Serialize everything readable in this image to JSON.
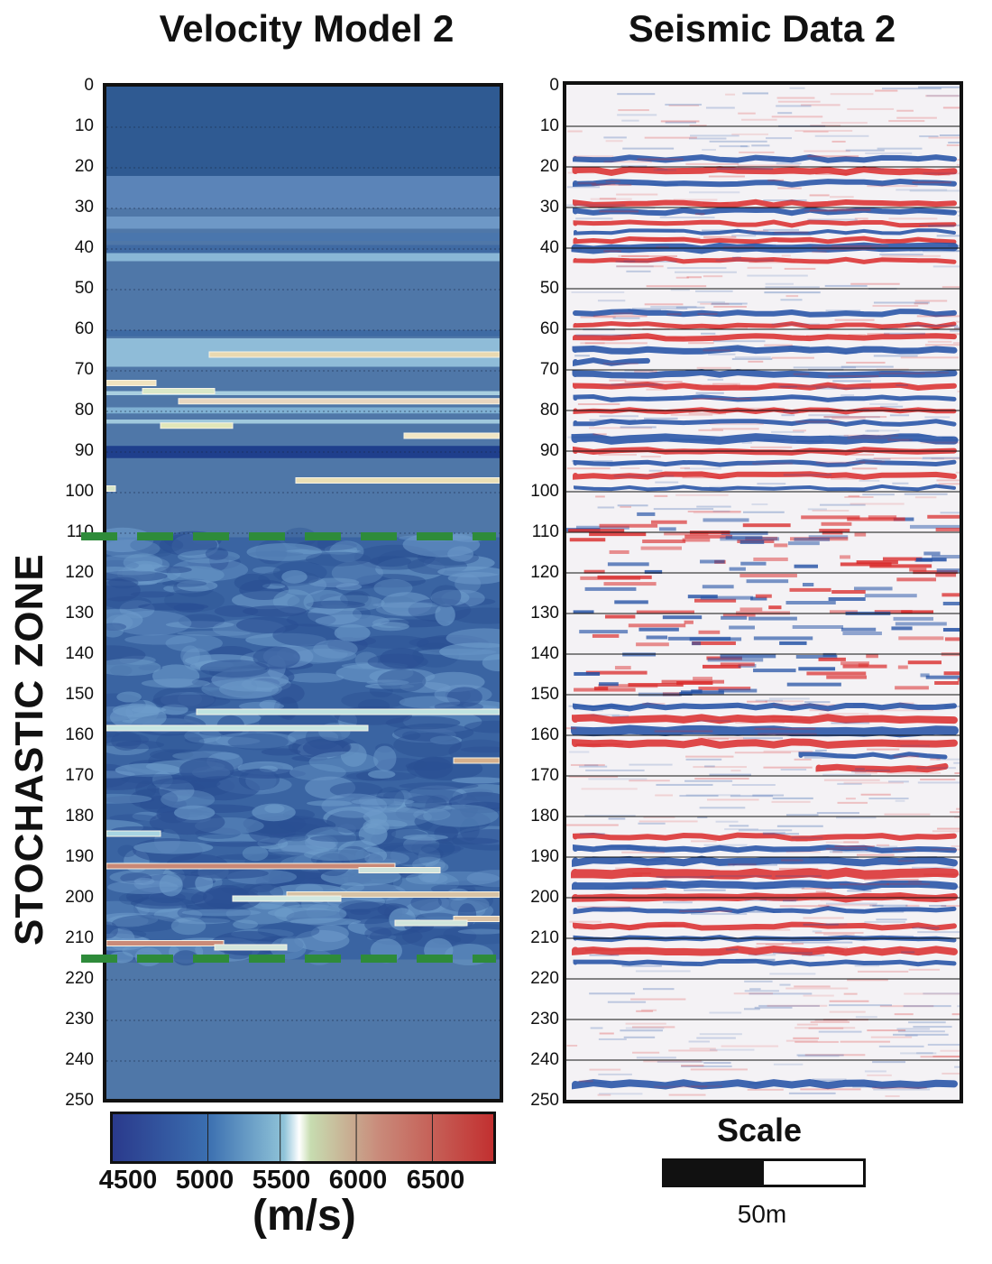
{
  "titles": {
    "velocity": "Velocity Model 2",
    "seismic": "Seismic Data 2"
  },
  "zone_label": "STOCHASTIC ZONE",
  "depth_ticks": [
    "0",
    "10",
    "20",
    "30",
    "40",
    "50",
    "60",
    "70",
    "80",
    "90",
    "100",
    "110",
    "120",
    "130",
    "140",
    "150",
    "160",
    "170",
    "180",
    "190",
    "200",
    "210",
    "220",
    "230",
    "240",
    "250"
  ],
  "stochastic_zone": {
    "top": 111,
    "bottom": 215,
    "color": "#2e8b3a"
  },
  "colorbar": {
    "labels": [
      "4500",
      "5000",
      "5500",
      "6000",
      "6500"
    ],
    "units": "(m/s)",
    "colors": [
      "#2a3a8c",
      "#3b6fb0",
      "#8fc3d8",
      "#ffffff",
      "#c7dcb0",
      "#c98a7a",
      "#c23030"
    ]
  },
  "scale": {
    "title": "Scale",
    "length_label": "50m"
  },
  "colors": {
    "background_blue": "#4f77a8",
    "deep_blue": "#264d8e",
    "positive": "#d92a2a",
    "negative": "#1f4ea3"
  }
}
